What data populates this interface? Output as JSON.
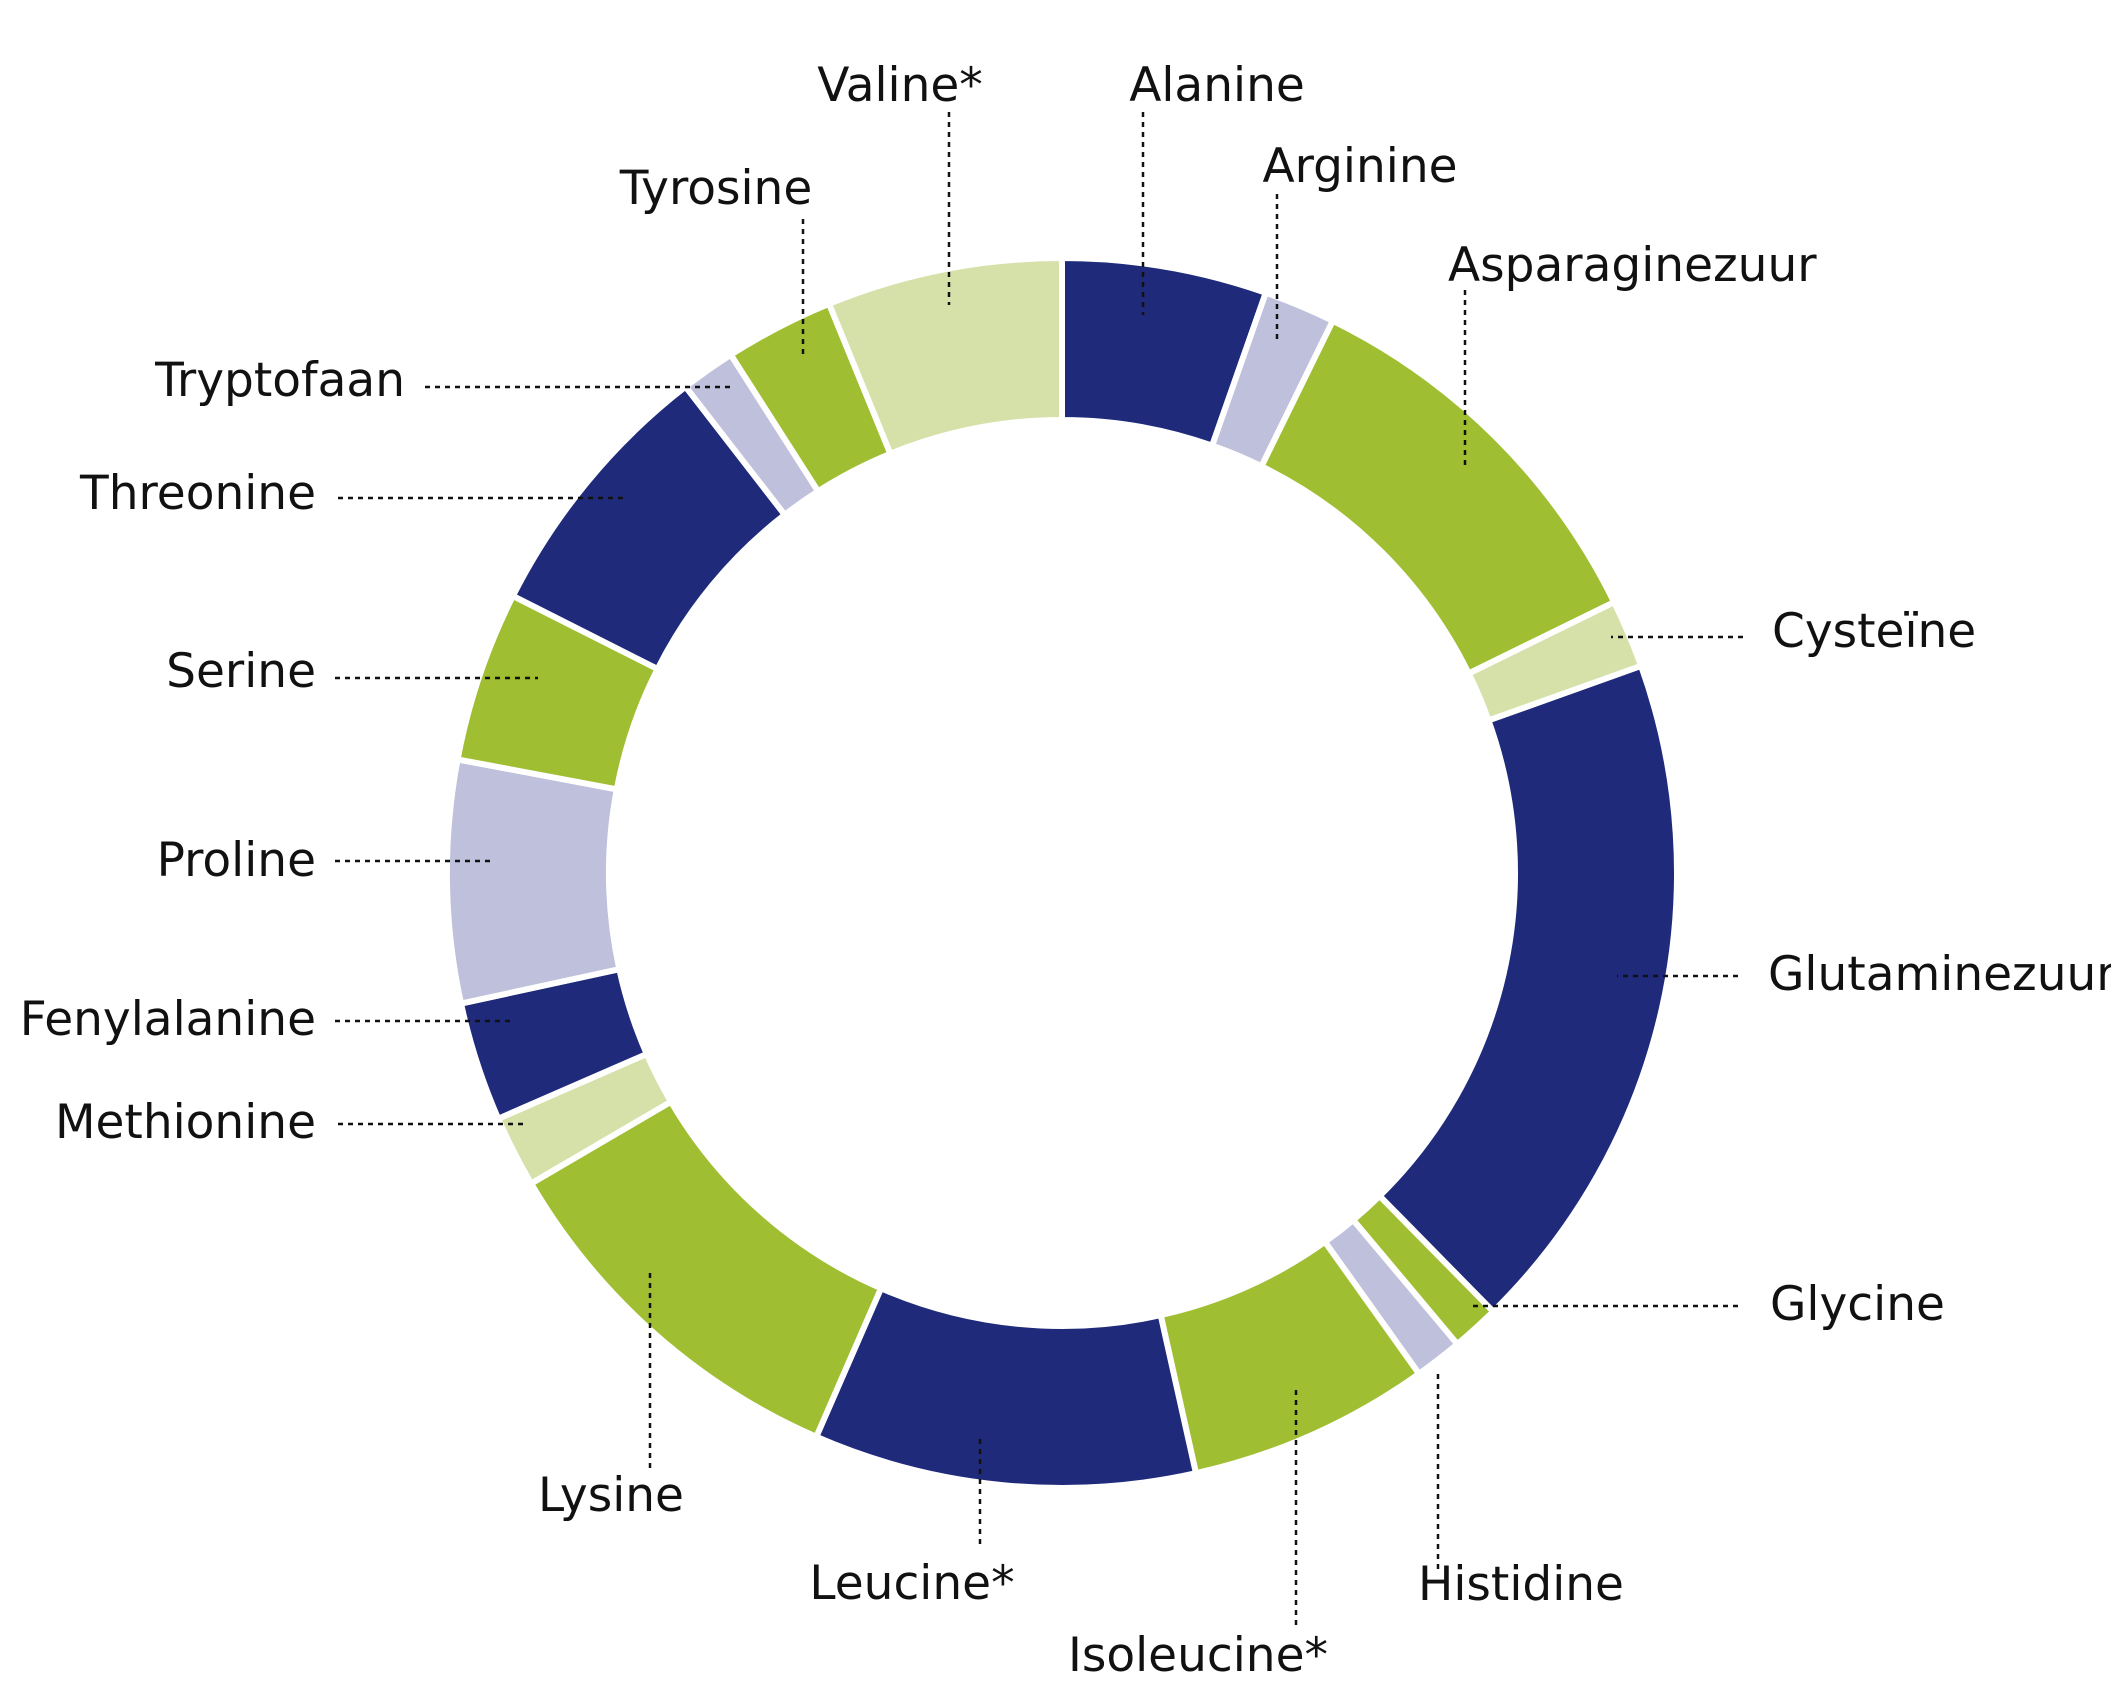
{
  "chart_data": {
    "type": "pie",
    "variant": "donut",
    "title": "",
    "colors": {
      "navy": "#1f2a7b",
      "green": "#a0be32",
      "light_green": "#d5e1a9",
      "lavender": "#bfc0db"
    },
    "slices": [
      {
        "label": "Alanine",
        "value": 6.0,
        "color": "#1f2a7b"
      },
      {
        "label": "Arginine",
        "value": 2.1,
        "color": "#bfc0db"
      },
      {
        "label": "Asparaginezuur",
        "value": 11.7,
        "color": "#a0be32"
      },
      {
        "label": "Cysteïne",
        "value": 2.0,
        "color": "#d5e1a9"
      },
      {
        "label": "Glutaminezuur",
        "value": 20.2,
        "color": "#1f2a7b"
      },
      {
        "label": "Glycine",
        "value": 1.4,
        "color": "#a0be32"
      },
      {
        "label": "Histidine",
        "value": 1.4,
        "color": "#bfc0db"
      },
      {
        "label": "Isoleucine*",
        "value": 7.1,
        "color": "#a0be32"
      },
      {
        "label": "Leucine*",
        "value": 11.2,
        "color": "#1f2a7b"
      },
      {
        "label": "Lysine",
        "value": 11.2,
        "color": "#a0be32"
      },
      {
        "label": "Methionine",
        "value": 2.1,
        "color": "#d5e1a9"
      },
      {
        "label": "Fenylalanine",
        "value": 3.5,
        "color": "#1f2a7b"
      },
      {
        "label": "Proline",
        "value": 7.1,
        "color": "#bfc0db"
      },
      {
        "label": "Serine",
        "value": 5.0,
        "color": "#a0be32"
      },
      {
        "label": "Threonine",
        "value": 7.9,
        "color": "#1f2a7b"
      },
      {
        "label": "Tryptofaan",
        "value": 1.6,
        "color": "#bfc0db"
      },
      {
        "label": "Tyrosine",
        "value": 3.2,
        "color": "#a0be32"
      },
      {
        "label": "Valine*",
        "value": 6.9,
        "color": "#d5e1a9"
      }
    ]
  }
}
